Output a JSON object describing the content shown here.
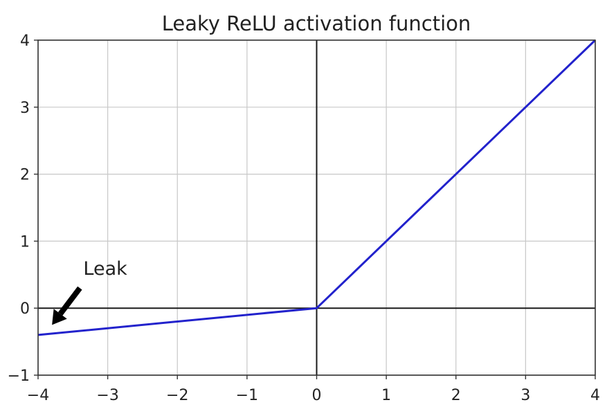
{
  "chart_data": {
    "type": "line",
    "title": "Leaky ReLU activation function",
    "xlabel": "",
    "ylabel": "",
    "xlim": [
      -4,
      4
    ],
    "ylim": [
      -1,
      4
    ],
    "x_ticks": [
      -4,
      -3,
      -2,
      -1,
      0,
      1,
      2,
      3,
      4
    ],
    "y_ticks": [
      -1,
      0,
      1,
      2,
      3,
      4
    ],
    "x_tick_labels": [
      "−4",
      "−3",
      "−2",
      "−1",
      "0",
      "1",
      "2",
      "3",
      "4"
    ],
    "y_tick_labels": [
      "−1",
      "0",
      "1",
      "2",
      "3",
      "4"
    ],
    "grid": true,
    "series": [
      {
        "x": [
          -4,
          0,
          4
        ],
        "y": [
          -0.4,
          0,
          4
        ],
        "color": "#2222cc"
      }
    ],
    "annotations": [
      {
        "text": "Leak",
        "x": -3.35,
        "y": 0.5,
        "arrow_from": [
          -3.4,
          0.3
        ],
        "arrow_to": [
          -3.8,
          -0.25
        ],
        "color": "#000000"
      }
    ]
  }
}
